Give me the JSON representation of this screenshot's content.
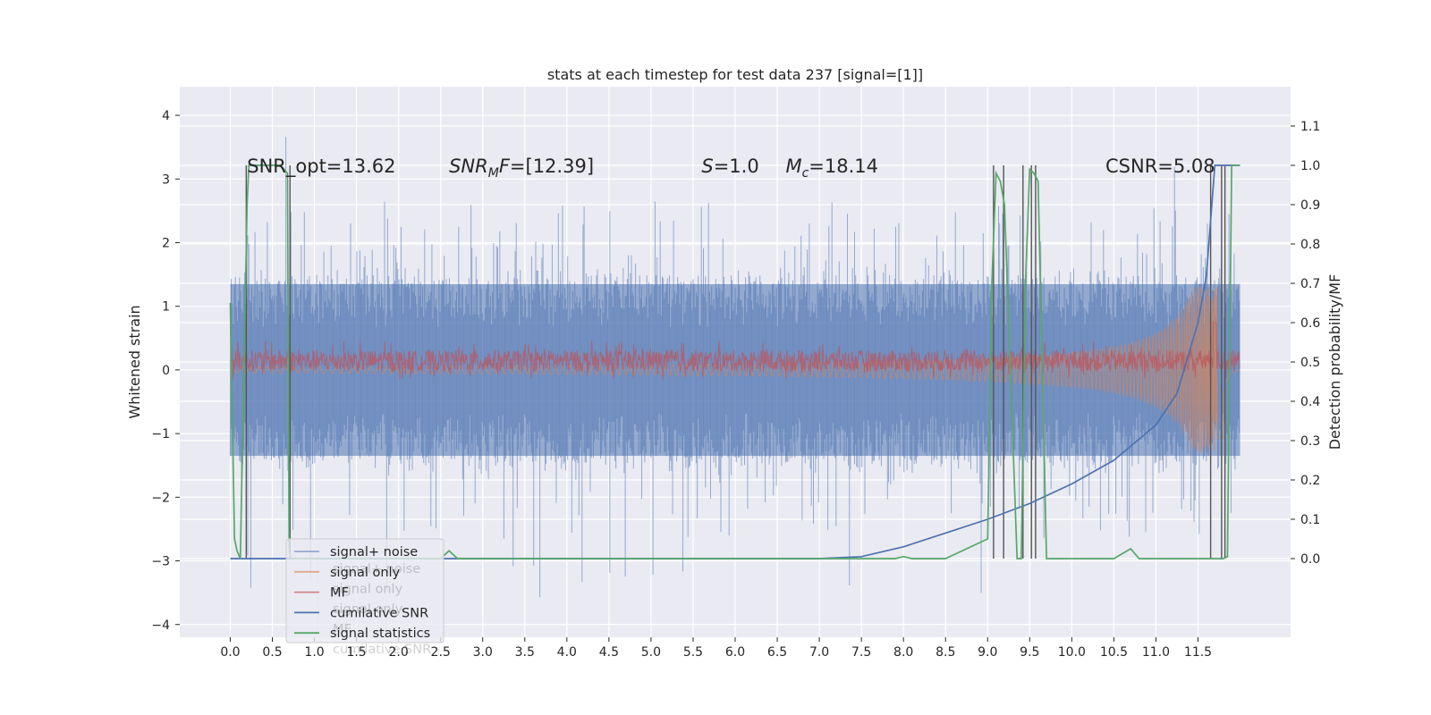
{
  "chart_data": {
    "type": "line",
    "title": "stats at each timestep for test data 237 [signal=[1]]",
    "ylabel": "Whitened strain",
    "y2label": "Detection probability/MF",
    "xlim": [
      -0.6,
      12.6
    ],
    "ylim": [
      -4.2,
      4.45
    ],
    "y2lim": [
      -0.2,
      1.2
    ],
    "x_ticks": [
      "0.0",
      "0.5",
      "1.0",
      "1.5",
      "2.0",
      "2.5",
      "3.0",
      "3.5",
      "4.0",
      "4.5",
      "5.0",
      "5.5",
      "6.0",
      "6.5",
      "7.0",
      "7.5",
      "8.0",
      "8.5",
      "9.0",
      "9.5",
      "10.0",
      "10.5",
      "11.0",
      "11.5"
    ],
    "y_ticks": [
      "4",
      "3",
      "2",
      "1",
      "0",
      "−1",
      "−2",
      "−3",
      "−4"
    ],
    "y2_ticks": [
      "1.1",
      "1.0",
      "0.9",
      "0.8",
      "0.7",
      "0.6",
      "0.5",
      "0.4",
      "0.3",
      "0.2",
      "0.1",
      "0.0"
    ],
    "grid": true,
    "background": "#eaeaf2",
    "annotations": [
      {
        "id": "snr-opt",
        "parts": [
          {
            "t": "SNR_opt=13.62"
          }
        ],
        "x": 0.2,
        "y": 3.2
      },
      {
        "id": "snr-mf",
        "parts": [
          {
            "t": "SNR",
            "i": true
          },
          {
            "t": "M",
            "i": true,
            "sub": true
          },
          {
            "t": "F",
            "i": true
          },
          {
            "t": "=[12.39]"
          }
        ],
        "x": 2.6,
        "y": 3.2
      },
      {
        "id": "s-value",
        "parts": [
          {
            "t": "S",
            "i": true
          },
          {
            "t": "=1.0"
          }
        ],
        "x": 5.6,
        "y": 3.2
      },
      {
        "id": "chirp-mass",
        "parts": [
          {
            "t": "M",
            "i": true
          },
          {
            "t": "c",
            "i": true,
            "sub": true
          },
          {
            "t": "=18.14"
          }
        ],
        "x": 6.6,
        "y": 3.2
      },
      {
        "id": "csnr",
        "parts": [
          {
            "t": "CSNR=5.08"
          }
        ],
        "x": 10.4,
        "y": 3.2
      }
    ],
    "legend": {
      "placement": "lower-left",
      "entries": [
        {
          "label": "signal+ noise",
          "color": "#4c72b0",
          "alpha": 0.55
        },
        {
          "label": "signal only",
          "color": "#dd8452",
          "alpha": 0.65
        },
        {
          "label": "MF",
          "color": "#c44e52",
          "alpha": 0.65
        },
        {
          "label": "cumilative SNR",
          "color": "#4c72b0",
          "alpha": 1
        },
        {
          "label": "signal statistics",
          "color": "#55a868",
          "alpha": 1
        }
      ],
      "ghost_entries": [
        "signal+ noise",
        "signal only",
        "signal only",
        "MF",
        "cumilative SNR"
      ]
    },
    "series": [
      {
        "name": "signal+ noise",
        "axis": "left",
        "style": "noise",
        "x_range": [
          0.0,
          12.0
        ],
        "base_amplitude": 1.35,
        "peak_amplitude": 3.9,
        "trough_amplitude": -3.8,
        "color": "#4c72b0"
      },
      {
        "name": "signal only",
        "axis": "left",
        "style": "chirp",
        "x_range": [
          0.0,
          12.0
        ],
        "start_amplitude": 0.05,
        "peak_amplitude": 1.3,
        "merger_x": 11.75,
        "color": "#dd8452"
      },
      {
        "name": "MF",
        "axis": "right",
        "style": "noise_band",
        "x_range": [
          0.0,
          12.0
        ],
        "base": 0.5,
        "amplitude": 0.055,
        "peak_x": 11.7,
        "peak_value": 0.6,
        "color": "#c44e52"
      },
      {
        "name": "cumilative SNR",
        "axis": "right",
        "color": "#4c72b0",
        "x": [
          0.0,
          0.5,
          1.0,
          2.0,
          3.0,
          4.0,
          5.0,
          6.0,
          6.5,
          7.0,
          7.5,
          8.0,
          8.5,
          9.0,
          9.5,
          10.0,
          10.5,
          11.0,
          11.25,
          11.5,
          11.6,
          11.7,
          12.0
        ],
        "y": [
          0.0,
          0.0,
          0.0,
          0.0,
          0.0,
          0.0,
          0.0,
          0.0,
          0.0,
          0.0,
          0.005,
          0.03,
          0.065,
          0.1,
          0.14,
          0.19,
          0.25,
          0.34,
          0.42,
          0.6,
          0.72,
          1.0,
          1.0
        ]
      },
      {
        "name": "signal statistics",
        "axis": "right",
        "color": "#55a868",
        "x": [
          0.0,
          0.05,
          0.08,
          0.12,
          0.2,
          0.22,
          0.25,
          0.4,
          0.5,
          0.6,
          0.68,
          0.7,
          0.72,
          0.75,
          1.0,
          2.0,
          2.5,
          2.6,
          2.7,
          3.0,
          4.0,
          5.0,
          6.0,
          6.5,
          7.0,
          7.5,
          7.9,
          8.0,
          8.1,
          8.5,
          9.0,
          9.05,
          9.1,
          9.15,
          9.2,
          9.25,
          9.35,
          9.4,
          9.45,
          9.5,
          9.55,
          9.6,
          9.7,
          10.0,
          10.5,
          10.7,
          10.8,
          11.0,
          11.2,
          11.5,
          11.8,
          11.85,
          11.9,
          12.0
        ],
        "y": [
          0.65,
          0.05,
          0.02,
          0.0,
          0.9,
          1.0,
          1.0,
          1.0,
          1.0,
          1.0,
          0.98,
          0.02,
          0.0,
          0.0,
          0.0,
          0.0,
          0.0,
          0.02,
          0.0,
          0.0,
          0.0,
          0.0,
          0.0,
          0.0,
          0.0,
          0.0,
          0.0,
          0.005,
          0.0,
          0.0,
          0.05,
          0.7,
          0.98,
          0.96,
          0.9,
          0.6,
          0.0,
          0.0,
          0.7,
          0.99,
          0.98,
          0.96,
          0.0,
          0.0,
          0.0,
          0.025,
          0.0,
          0.0,
          0.0,
          0.0,
          0.0,
          0.005,
          1.0,
          1.0
        ]
      },
      {
        "name": "detection markers",
        "axis": "right",
        "style": "vlines",
        "color": "#555555",
        "x": [
          0.19,
          0.71,
          9.07,
          9.19,
          9.42,
          9.52,
          9.57,
          11.65,
          11.78,
          11.82
        ],
        "y_range": [
          0.0,
          1.0
        ]
      }
    ]
  }
}
